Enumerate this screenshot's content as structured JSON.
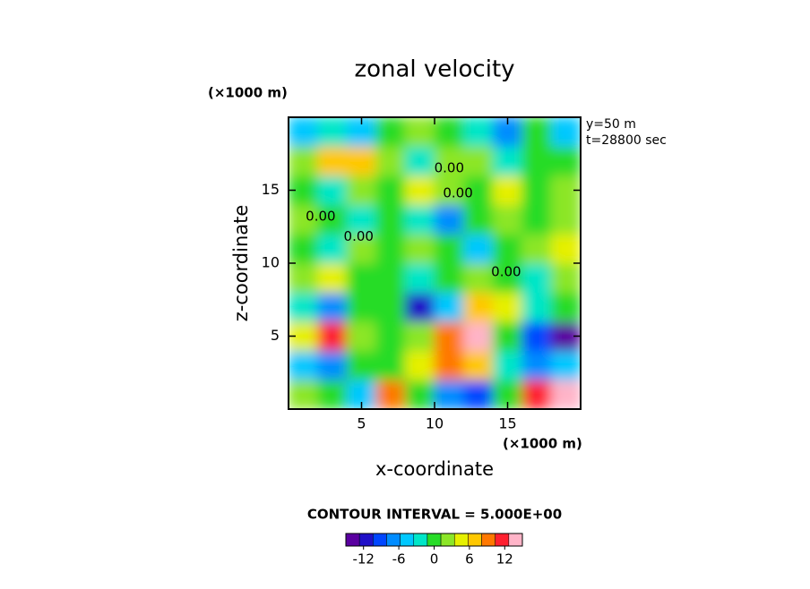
{
  "chart_data": {
    "type": "contour",
    "title": "zonal velocity",
    "x_unit_label": "(×1000 m)",
    "y_unit_label": "(×1000 m)",
    "xlabel": "x-coordinate",
    "ylabel": "z-coordinate",
    "info": [
      "y=50  m",
      "t=28800 sec"
    ],
    "contour_interval_label": "CONTOUR INTERVAL = 5.000E+00",
    "xlim": [
      0,
      20
    ],
    "ylim": [
      0,
      20
    ],
    "xticks": [
      5,
      10,
      15
    ],
    "yticks": [
      5,
      10,
      15
    ],
    "x": [
      1,
      3,
      5,
      7,
      9,
      11,
      13,
      15,
      17,
      19
    ],
    "y": [
      1,
      3,
      5,
      7,
      9,
      11,
      13,
      15,
      17,
      19
    ],
    "z": [
      [
        2,
        0,
        -4,
        10,
        0,
        -8,
        -10,
        0,
        12,
        15
      ],
      [
        -4,
        -8,
        0,
        1,
        4,
        10,
        6,
        -3,
        -8,
        -4
      ],
      [
        4,
        12,
        2,
        0,
        2,
        10,
        15,
        0,
        -10,
        -15
      ],
      [
        -3,
        -8,
        0,
        0,
        -12,
        -4,
        8,
        4,
        -3,
        0
      ],
      [
        2,
        4,
        0,
        0,
        -2,
        0,
        2,
        0,
        -3,
        2
      ],
      [
        0,
        -2,
        2,
        0,
        2,
        0,
        -4,
        0,
        2,
        4
      ],
      [
        2,
        0,
        -2,
        0,
        -3,
        -6,
        0,
        2,
        0,
        2
      ],
      [
        0,
        -2,
        2,
        0,
        4,
        2,
        0,
        4,
        0,
        2
      ],
      [
        2,
        8,
        8,
        2,
        -2,
        2,
        2,
        -2,
        0,
        0
      ],
      [
        -4,
        -2,
        -4,
        0,
        2,
        0,
        -2,
        -8,
        0,
        -4
      ]
    ],
    "contour_labels": [
      {
        "text": "0.00",
        "x": 11,
        "z": 16.5
      },
      {
        "text": "0.00",
        "x": 11.6,
        "z": 14.8
      },
      {
        "text": "0.00",
        "x": 2.2,
        "z": 13.2
      },
      {
        "text": "0.00",
        "x": 4.8,
        "z": 11.8
      },
      {
        "text": "0.00",
        "x": 14.9,
        "z": 9.4
      }
    ],
    "clim": [
      -15,
      15
    ],
    "cticks": [
      -12,
      -6,
      0,
      6,
      12
    ],
    "colors": [
      "#5a00a0",
      "#2010c8",
      "#0046ff",
      "#008cff",
      "#00c8ff",
      "#00e6c8",
      "#28dc28",
      "#8ce628",
      "#e6f000",
      "#ffc800",
      "#ff7800",
      "#ff2030",
      "#ffb4c8"
    ]
  }
}
